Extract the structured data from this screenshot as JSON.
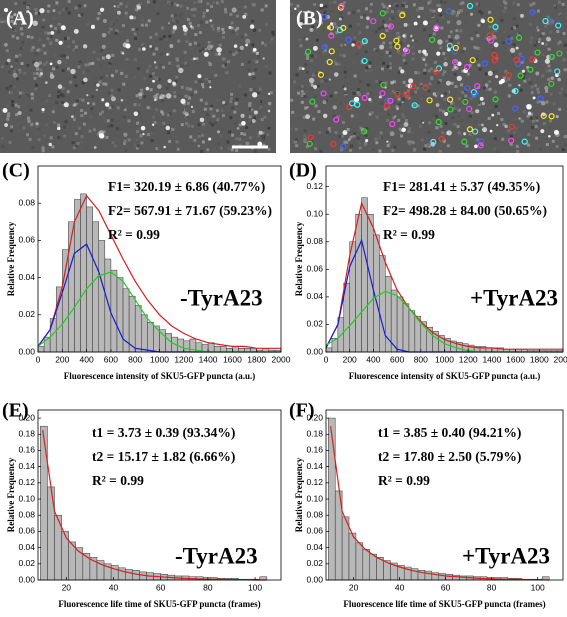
{
  "images": [
    {
      "label": "(A)"
    },
    {
      "label": "(B)"
    }
  ],
  "chart_data": [
    {
      "type": "histogram",
      "label": "(C)",
      "condition": "-TyrA23",
      "annotations": [
        "F1= 320.19 ± 6.86  (40.77%)",
        "F2= 567.91 ± 71.67  (59.23%)",
        "R² = 0.99"
      ],
      "x_label": "Fluorescence  intensity of SKU5-GFP puncta (a.u.)",
      "y_label": "Relative Frequency",
      "color": "#b8b8b8",
      "bins": [
        0,
        50,
        100,
        150,
        200,
        250,
        300,
        350,
        400,
        450,
        500,
        550,
        600,
        650,
        700,
        750,
        800,
        850,
        900,
        950,
        1000,
        1050,
        1100,
        1150,
        1200,
        1250,
        1300,
        1350,
        1400,
        1450,
        1500,
        1550,
        1600,
        1650,
        1700,
        1750,
        1800,
        1850,
        1900,
        1950,
        2000
      ],
      "values": [
        0.003,
        0.008,
        0.018,
        0.035,
        0.055,
        0.07,
        0.082,
        0.085,
        0.078,
        0.07,
        0.06,
        0.05,
        0.044,
        0.04,
        0.034,
        0.03,
        0.025,
        0.02,
        0.016,
        0.014,
        0.012,
        0.01,
        0.008,
        0.007,
        0.006,
        0.007,
        0.005,
        0.004,
        0.005,
        0.003,
        0.003,
        0.002,
        0.003,
        0.002,
        0.002,
        0.002,
        0.001,
        0.002,
        0.001,
        0.001
      ],
      "fit_x": [
        0,
        100,
        200,
        300,
        400,
        500,
        600,
        700,
        800,
        900,
        1000,
        1100,
        1200,
        1300,
        1400,
        1500,
        1600,
        1700,
        1800,
        1900,
        2000
      ],
      "fits": [
        {
          "color": "#d42020",
          "values": [
            0.003,
            0.012,
            0.035,
            0.07,
            0.084,
            0.076,
            0.063,
            0.05,
            0.038,
            0.028,
            0.02,
            0.014,
            0.01,
            0.007,
            0.005,
            0.004,
            0.003,
            0.003,
            0.002,
            0.002,
            0.002
          ]
        },
        {
          "color": "#1a1ad0",
          "values": [
            0.003,
            0.012,
            0.032,
            0.053,
            0.058,
            0.043,
            0.021,
            0.007,
            0.002,
            0.001,
            0,
            0,
            0,
            0,
            0,
            0,
            0,
            0,
            0,
            0,
            0
          ]
        },
        {
          "color": "#22cc22",
          "values": [
            0.003,
            0.008,
            0.015,
            0.024,
            0.034,
            0.041,
            0.043,
            0.038,
            0.028,
            0.018,
            0.011,
            0.005,
            0.002,
            0.001,
            0,
            0,
            0,
            0,
            0,
            0,
            0
          ]
        }
      ],
      "xlim": [
        0,
        2000
      ],
      "xticks": [
        0,
        200,
        400,
        600,
        800,
        1000,
        1200,
        1400,
        1600,
        1800,
        2000
      ],
      "ylim": [
        0,
        0.1
      ],
      "yticks": [
        {
          "value": 0,
          "label": "0.00"
        },
        0.02,
        0.04,
        0.06,
        0.08
      ]
    },
    {
      "type": "histogram",
      "label": "(D)",
      "condition": "+TyrA23",
      "annotations": [
        "F1= 281.41 ± 5.37  (49.35%)",
        "F2= 498.28 ± 84.00  (50.65%)",
        "R² = 0.99"
      ],
      "x_label": "Fluorescence  intensity of SKU5-GFP puncta (a.u.)",
      "y_label": "Relative Frequency",
      "color": "#b8b8b8",
      "bins": [
        0,
        50,
        100,
        150,
        200,
        250,
        300,
        350,
        400,
        450,
        500,
        550,
        600,
        650,
        700,
        750,
        800,
        850,
        900,
        950,
        1000,
        1050,
        1100,
        1150,
        1200,
        1250,
        1300,
        1350,
        1400,
        1450,
        1500,
        1550,
        1600,
        1650,
        1700,
        1750,
        1800,
        1850,
        1900,
        1950,
        2000
      ],
      "values": [
        0.003,
        0.01,
        0.025,
        0.05,
        0.08,
        0.1,
        0.112,
        0.1,
        0.085,
        0.07,
        0.055,
        0.045,
        0.04,
        0.035,
        0.03,
        0.026,
        0.022,
        0.018,
        0.015,
        0.012,
        0.01,
        0.008,
        0.007,
        0.006,
        0.005,
        0.004,
        0.004,
        0.003,
        0.003,
        0.003,
        0.002,
        0.002,
        0.002,
        0.002,
        0.001,
        0.001,
        0.001,
        0.001,
        0.001,
        0.001
      ],
      "fit_x": [
        0,
        100,
        200,
        300,
        400,
        500,
        600,
        700,
        800,
        900,
        1000,
        1100,
        1200,
        1300,
        1400,
        1500,
        1600,
        1700,
        1800,
        1900,
        2000
      ],
      "fits": [
        {
          "color": "#d42020",
          "values": [
            0.003,
            0.02,
            0.07,
            0.108,
            0.09,
            0.065,
            0.045,
            0.032,
            0.022,
            0.014,
            0.009,
            0.006,
            0.004,
            0.003,
            0.003,
            0.002,
            0.002,
            0.002,
            0.002,
            0.002,
            0.002
          ]
        },
        {
          "color": "#1a1ad0",
          "values": [
            0.003,
            0.02,
            0.062,
            0.081,
            0.045,
            0.012,
            0.002,
            0,
            0,
            0,
            0,
            0,
            0,
            0,
            0,
            0,
            0,
            0,
            0,
            0,
            0
          ]
        },
        {
          "color": "#22cc22",
          "values": [
            0.005,
            0.01,
            0.019,
            0.029,
            0.039,
            0.044,
            0.041,
            0.032,
            0.021,
            0.012,
            0.006,
            0.003,
            0.001,
            0,
            0,
            0,
            0,
            0,
            0,
            0,
            0
          ]
        }
      ],
      "xlim": [
        0,
        2000
      ],
      "xticks": [
        0,
        200,
        400,
        600,
        800,
        1000,
        1200,
        1400,
        1600,
        1800,
        2000
      ],
      "ylim": [
        0,
        0.135
      ],
      "yticks": [
        {
          "value": 0,
          "label": "0.00"
        },
        0.02,
        0.04,
        0.06,
        0.08,
        {
          "value": 0.1,
          "label": "0.10"
        },
        0.12
      ]
    },
    {
      "type": "histogram",
      "label": "(E)",
      "condition": "-TyrA23",
      "annotations": [
        "t1 = 3.73 ± 0.39  (93.34%)",
        "t2 = 15.17 ± 1.82  (6.66%)",
        "R² = 0.99"
      ],
      "x_label": "Fluorescence life time of SKU5-GFP puncta (frames)",
      "y_label": "Relative Frequency",
      "color": "#b8b8b8",
      "bins": [
        9,
        12,
        15,
        18,
        21,
        24,
        27,
        30,
        33,
        36,
        39,
        42,
        45,
        48,
        51,
        54,
        57,
        60,
        63,
        66,
        69,
        72,
        75,
        78,
        81,
        84,
        87,
        90,
        93,
        96,
        99,
        102,
        105
      ],
      "values": [
        0.19,
        0.115,
        0.08,
        0.06,
        0.047,
        0.04,
        0.033,
        0.028,
        0.024,
        0.02,
        0.018,
        0.015,
        0.013,
        0.012,
        0.01,
        0.009,
        0.008,
        0.007,
        0.006,
        0.005,
        0.005,
        0.004,
        0.004,
        0.003,
        0.003,
        0.002,
        0.002,
        0.002,
        0.001,
        0.001,
        0.001,
        0.004
      ],
      "fit_x": [
        10,
        15,
        20,
        25,
        30,
        35,
        40,
        45,
        50,
        55,
        60,
        65,
        70,
        75,
        80,
        85,
        90,
        95,
        100,
        105
      ],
      "fits": [
        {
          "color": "#d42020",
          "values": [
            0.185,
            0.085,
            0.052,
            0.036,
            0.026,
            0.019,
            0.014,
            0.01,
            0.007,
            0.005,
            0.004,
            0.003,
            0.002,
            0.0015,
            0.001,
            0.001,
            0.0005,
            0.0005,
            0,
            0
          ]
        }
      ],
      "xlim": [
        8,
        111
      ],
      "xticks": [
        20,
        40,
        60,
        80,
        100
      ],
      "ylim": [
        0,
        0.21
      ],
      "yticks": [
        {
          "value": 0,
          "label": "0.00"
        },
        0.02,
        0.04,
        0.06,
        0.08,
        {
          "value": 0.1,
          "label": "0.10"
        },
        0.12,
        0.14,
        0.16,
        0.18,
        {
          "value": 0.2,
          "label": "0.20"
        }
      ]
    },
    {
      "type": "histogram",
      "label": "(F)",
      "condition": "+TyrA23",
      "annotations": [
        "t1 = 3.85 ± 0.40  (94.21%)",
        "t2 = 17.80 ± 2.50  (5.79%)",
        "R² = 0.99"
      ],
      "x_label": "Fluorescence life time of SKU5-GFP puncta (frames)",
      "y_label": "Relative Frequency",
      "color": "#b8b8b8",
      "bins": [
        9,
        12,
        15,
        18,
        21,
        24,
        27,
        30,
        33,
        36,
        39,
        42,
        45,
        48,
        51,
        54,
        57,
        60,
        63,
        66,
        69,
        72,
        75,
        78,
        81,
        84,
        87,
        90,
        93,
        96,
        99,
        102,
        105
      ],
      "values": [
        0.2,
        0.11,
        0.078,
        0.058,
        0.046,
        0.038,
        0.032,
        0.028,
        0.024,
        0.021,
        0.018,
        0.016,
        0.014,
        0.012,
        0.011,
        0.009,
        0.008,
        0.007,
        0.006,
        0.005,
        0.005,
        0.004,
        0.004,
        0.003,
        0.003,
        0.003,
        0.002,
        0.002,
        0.001,
        0.001,
        0.001,
        0.004
      ],
      "fit_x": [
        10,
        15,
        20,
        25,
        30,
        35,
        40,
        45,
        50,
        55,
        60,
        65,
        70,
        75,
        80,
        85,
        90,
        95,
        100,
        105
      ],
      "fits": [
        {
          "color": "#d42020",
          "values": [
            0.19,
            0.085,
            0.053,
            0.038,
            0.028,
            0.021,
            0.016,
            0.012,
            0.009,
            0.007,
            0.005,
            0.004,
            0.003,
            0.002,
            0.0015,
            0.001,
            0.001,
            0.0005,
            0.0005,
            0
          ]
        }
      ],
      "xlim": [
        8,
        111
      ],
      "xticks": [
        20,
        40,
        60,
        80,
        100
      ],
      "ylim": [
        0,
        0.21
      ],
      "yticks": [
        {
          "value": 0,
          "label": "0.00"
        },
        0.02,
        0.04,
        0.06,
        0.08,
        {
          "value": 0.1,
          "label": "0.10"
        },
        0.12,
        0.14,
        0.16,
        0.18,
        {
          "value": 0.2,
          "label": "0.20"
        }
      ]
    }
  ]
}
